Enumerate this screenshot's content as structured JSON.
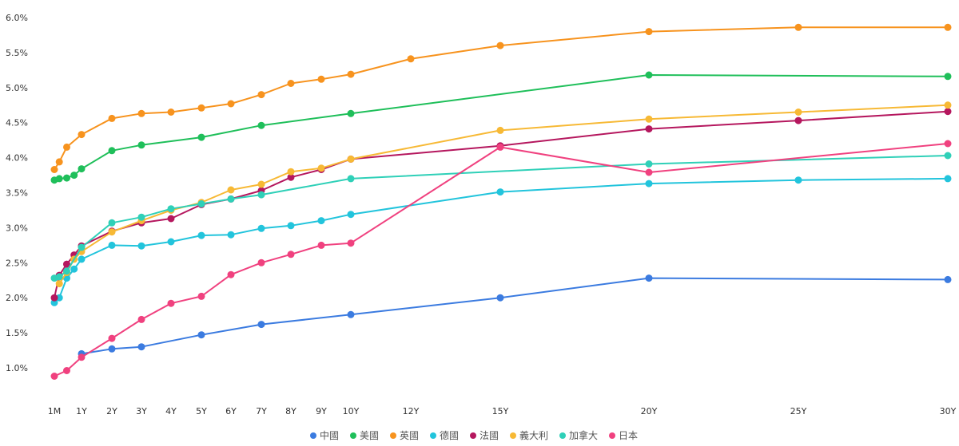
{
  "chart_data": {
    "type": "line",
    "title": "",
    "xlabel": "",
    "ylabel": "",
    "ylim": [
      0.6,
      6.1
    ],
    "x_ticks": [
      {
        "label": "1M",
        "t": 0.0833
      },
      {
        "label": "1Y",
        "t": 1
      },
      {
        "label": "2Y",
        "t": 2
      },
      {
        "label": "3Y",
        "t": 3
      },
      {
        "label": "4Y",
        "t": 4
      },
      {
        "label": "5Y",
        "t": 5
      },
      {
        "label": "6Y",
        "t": 6
      },
      {
        "label": "7Y",
        "t": 7
      },
      {
        "label": "8Y",
        "t": 8
      },
      {
        "label": "9Y",
        "t": 9
      },
      {
        "label": "10Y",
        "t": 10
      },
      {
        "label": "12Y",
        "t": 12
      },
      {
        "label": "15Y",
        "t": 15
      },
      {
        "label": "20Y",
        "t": 20
      },
      {
        "label": "25Y",
        "t": 25
      },
      {
        "label": "30Y",
        "t": 30
      }
    ],
    "y_ticks": [
      "1.0%",
      "1.5%",
      "2.0%",
      "2.5%",
      "3.0%",
      "3.5%",
      "4.0%",
      "4.5%",
      "5.0%",
      "5.5%",
      "6.0%"
    ],
    "y_tick_values": [
      1.0,
      1.5,
      2.0,
      2.5,
      3.0,
      3.5,
      4.0,
      4.5,
      5.0,
      5.5,
      6.0
    ],
    "legend_position": "bottom",
    "series": [
      {
        "name": "中國",
        "color": "#3b7be0",
        "points": [
          [
            1,
            1.2
          ],
          [
            2,
            1.27
          ],
          [
            3,
            1.3
          ],
          [
            5,
            1.47
          ],
          [
            7,
            1.62
          ],
          [
            10,
            1.76
          ],
          [
            15,
            2.0
          ],
          [
            20,
            2.28
          ],
          [
            30,
            2.26
          ]
        ]
      },
      {
        "name": "美國",
        "color": "#1fbf5a",
        "points": [
          [
            0.0833,
            3.68
          ],
          [
            0.25,
            3.7
          ],
          [
            0.5,
            3.71
          ],
          [
            0.75,
            3.75
          ],
          [
            1,
            3.84
          ],
          [
            2,
            4.1
          ],
          [
            3,
            4.18
          ],
          [
            5,
            4.29
          ],
          [
            7,
            4.46
          ],
          [
            10,
            4.63
          ],
          [
            20,
            5.18
          ],
          [
            30,
            5.16
          ]
        ]
      },
      {
        "name": "英國",
        "color": "#f7931e",
        "points": [
          [
            0.0833,
            3.83
          ],
          [
            0.25,
            3.94
          ],
          [
            0.5,
            4.15
          ],
          [
            1,
            4.33
          ],
          [
            2,
            4.56
          ],
          [
            3,
            4.63
          ],
          [
            4,
            4.65
          ],
          [
            5,
            4.71
          ],
          [
            6,
            4.77
          ],
          [
            7,
            4.9
          ],
          [
            8,
            5.06
          ],
          [
            9,
            5.12
          ],
          [
            10,
            5.19
          ],
          [
            12,
            5.41
          ],
          [
            15,
            5.6
          ],
          [
            20,
            5.8
          ],
          [
            25,
            5.86
          ],
          [
            30,
            5.86
          ]
        ]
      },
      {
        "name": "德國",
        "color": "#22c4dc",
        "points": [
          [
            0.0833,
            1.93
          ],
          [
            0.25,
            2.0
          ],
          [
            0.5,
            2.28
          ],
          [
            0.75,
            2.41
          ],
          [
            1,
            2.55
          ],
          [
            2,
            2.75
          ],
          [
            3,
            2.74
          ],
          [
            4,
            2.8
          ],
          [
            5,
            2.89
          ],
          [
            6,
            2.9
          ],
          [
            7,
            2.99
          ],
          [
            8,
            3.03
          ],
          [
            9,
            3.1
          ],
          [
            10,
            3.19
          ],
          [
            15,
            3.51
          ],
          [
            20,
            3.63
          ],
          [
            25,
            3.68
          ],
          [
            30,
            3.7
          ]
        ]
      },
      {
        "name": "法國",
        "color": "#b5175e",
        "points": [
          [
            0.0833,
            2.0
          ],
          [
            0.25,
            2.32
          ],
          [
            0.5,
            2.48
          ],
          [
            0.75,
            2.61
          ],
          [
            1,
            2.74
          ],
          [
            2,
            2.95
          ],
          [
            3,
            3.07
          ],
          [
            4,
            3.13
          ],
          [
            5,
            3.33
          ],
          [
            6,
            3.41
          ],
          [
            7,
            3.53
          ],
          [
            8,
            3.72
          ],
          [
            9,
            3.83
          ],
          [
            10,
            3.98
          ],
          [
            15,
            4.17
          ],
          [
            20,
            4.41
          ],
          [
            25,
            4.53
          ],
          [
            30,
            4.66
          ]
        ]
      },
      {
        "name": "義大利",
        "color": "#f7b935",
        "points": [
          [
            0.25,
            2.2
          ],
          [
            0.5,
            2.36
          ],
          [
            0.75,
            2.55
          ],
          [
            1,
            2.66
          ],
          [
            2,
            2.94
          ],
          [
            3,
            3.1
          ],
          [
            4,
            3.25
          ],
          [
            5,
            3.36
          ],
          [
            6,
            3.54
          ],
          [
            7,
            3.62
          ],
          [
            8,
            3.8
          ],
          [
            9,
            3.85
          ],
          [
            10,
            3.98
          ],
          [
            15,
            4.39
          ],
          [
            20,
            4.55
          ],
          [
            25,
            4.65
          ],
          [
            30,
            4.75
          ]
        ]
      },
      {
        "name": "加拿大",
        "color": "#2fd0b8",
        "points": [
          [
            0.0833,
            2.28
          ],
          [
            0.25,
            2.3
          ],
          [
            0.5,
            2.38
          ],
          [
            1,
            2.72
          ],
          [
            2,
            3.07
          ],
          [
            3,
            3.15
          ],
          [
            4,
            3.27
          ],
          [
            5,
            3.34
          ],
          [
            6,
            3.41
          ],
          [
            7,
            3.47
          ],
          [
            10,
            3.7
          ],
          [
            20,
            3.91
          ],
          [
            30,
            4.03
          ]
        ]
      },
      {
        "name": "日本",
        "color": "#f0417f",
        "points": [
          [
            0.0833,
            0.88
          ],
          [
            0.5,
            0.96
          ],
          [
            1,
            1.15
          ],
          [
            2,
            1.42
          ],
          [
            3,
            1.69
          ],
          [
            4,
            1.92
          ],
          [
            5,
            2.02
          ],
          [
            6,
            2.33
          ],
          [
            7,
            2.5
          ],
          [
            8,
            2.62
          ],
          [
            9,
            2.75
          ],
          [
            10,
            2.78
          ],
          [
            15,
            4.15
          ],
          [
            20,
            3.79
          ],
          [
            30,
            4.2
          ]
        ]
      }
    ]
  }
}
